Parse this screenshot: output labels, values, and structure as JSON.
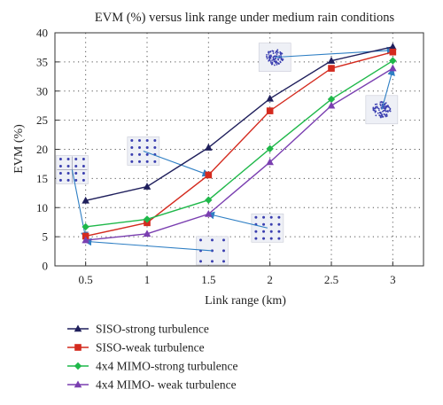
{
  "chart_data": {
    "type": "line",
    "title": "EVM (%) versus link range under medium rain conditions",
    "xlabel": "Link range (km)",
    "ylabel": "EVM (%)",
    "x": [
      0.5,
      1,
      1.5,
      2,
      2.5,
      3
    ],
    "x_ticks": [
      "0.5",
      "1",
      "1.5",
      "2",
      "2.5",
      "3"
    ],
    "xlim": [
      0.25,
      3.25
    ],
    "ylim": [
      0,
      40
    ],
    "y_ticks": [
      "0",
      "5",
      "10",
      "15",
      "20",
      "25",
      "30",
      "35",
      "40"
    ],
    "grid": true,
    "legend_position": "below",
    "series": [
      {
        "name": "SISO-strong turbulence",
        "marker": "triangle",
        "color": "#1f1f5c",
        "values": [
          11.2,
          13.6,
          20.3,
          28.7,
          35.2,
          37.6
        ]
      },
      {
        "name": "SISO-weak turbulence",
        "marker": "square",
        "color": "#d42a1e",
        "values": [
          5.1,
          7.4,
          15.6,
          26.6,
          33.9,
          36.7
        ]
      },
      {
        "name": "4x4 MIMO-strong turbulence",
        "marker": "diamond",
        "color": "#1fb84a",
        "values": [
          6.7,
          8.0,
          11.3,
          20.1,
          28.6,
          35.2
        ]
      },
      {
        "name": "4x4 MIMO- weak turbulence",
        "marker": "triangle",
        "color": "#7a3fb0",
        "values": [
          4.4,
          5.5,
          8.9,
          17.8,
          27.5,
          33.9
        ]
      }
    ],
    "annotations": [
      {
        "type": "constellation-inset",
        "style": "cross",
        "x": 0.39,
        "y": 16.5
      },
      {
        "type": "constellation-inset",
        "style": "grid",
        "x": 0.97,
        "y": 19.7
      },
      {
        "type": "constellation-inset",
        "style": "grid-sparse",
        "x": 1.53,
        "y": 2.6
      },
      {
        "type": "constellation-inset",
        "style": "grid",
        "x": 1.98,
        "y": 6.5
      },
      {
        "type": "constellation-inset",
        "style": "noise",
        "x": 2.04,
        "y": 35.8
      },
      {
        "type": "constellation-inset",
        "style": "noise",
        "x": 2.91,
        "y": 26.8
      }
    ]
  }
}
